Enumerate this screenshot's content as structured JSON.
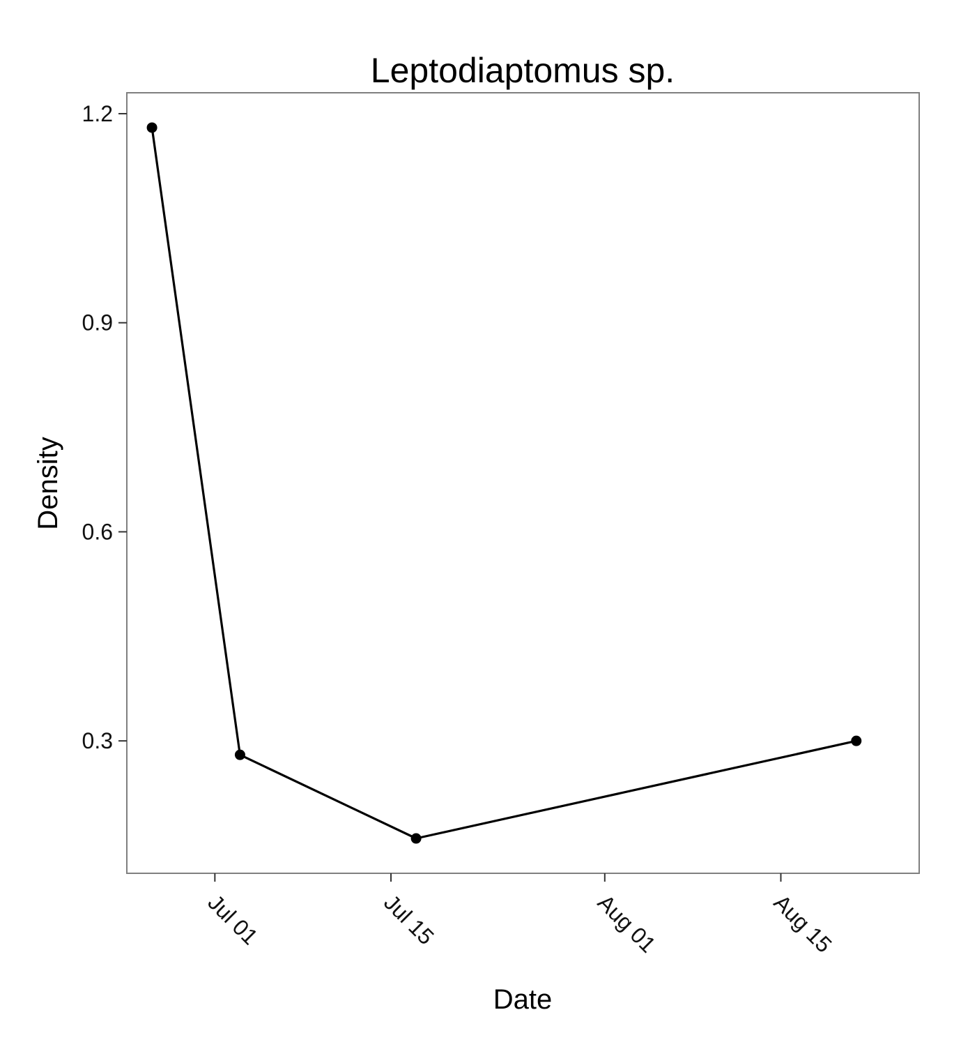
{
  "chart_data": {
    "type": "line",
    "title": "Leptodiaptomus sp.",
    "xlabel": "Date",
    "ylabel": "Density",
    "x_type": "date",
    "year": 2000,
    "x": [
      "2000-06-26",
      "2000-07-03",
      "2000-07-17",
      "2000-08-21"
    ],
    "values": [
      1.18,
      0.28,
      0.16,
      0.3
    ],
    "xlim": [
      "2000-06-24",
      "2000-08-26"
    ],
    "ylim": [
      0.11,
      1.23
    ],
    "xticks": [
      {
        "date": "2000-07-01",
        "label": "Jul 01"
      },
      {
        "date": "2000-07-15",
        "label": "Jul 15"
      },
      {
        "date": "2000-08-01",
        "label": "Aug 01"
      },
      {
        "date": "2000-08-15",
        "label": "Aug 15"
      }
    ],
    "x_minor_ticks": [
      "2000-06-24",
      "2000-07-08",
      "2000-07-23",
      "2000-08-08",
      "2000-08-23"
    ],
    "yticks": [
      0.3,
      0.6,
      0.9,
      1.2
    ],
    "y_minor_ticks": [
      0.15,
      0.45,
      0.75,
      1.05
    ],
    "grid": true,
    "legend": "none",
    "line_color": "#000000",
    "point_color": "#000000"
  }
}
